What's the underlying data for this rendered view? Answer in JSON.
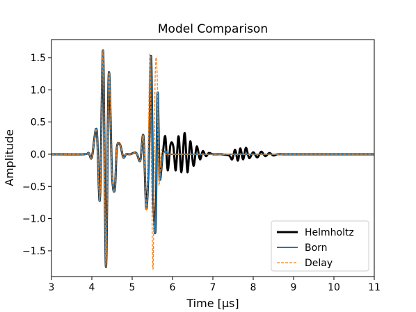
{
  "chart_data": {
    "type": "line",
    "title": "Model Comparison",
    "xlabel": "Time [µs]",
    "ylabel": "Amplitude",
    "xlim": [
      3,
      11
    ],
    "ylim": [
      -1.9,
      1.78
    ],
    "xticks": [
      3,
      4,
      5,
      6,
      7,
      8,
      9,
      10,
      11
    ],
    "xtick_labels": [
      "3",
      "4",
      "5",
      "6",
      "7",
      "8",
      "9",
      "10",
      "11"
    ],
    "yticks": [
      -1.5,
      -1.0,
      -0.5,
      0.0,
      0.5,
      1.0,
      1.5
    ],
    "ytick_labels": [
      "−1.5",
      "−1.0",
      "−0.5",
      "0.0",
      "0.5",
      "1.0",
      "1.5"
    ],
    "grid": false,
    "legend_position": "lower-right",
    "series": [
      {
        "name": "Helmholtz",
        "color": "#000000",
        "style": "solid-thick",
        "x": [
          3.0,
          3.8,
          3.92,
          4.0,
          4.12,
          4.2,
          4.28,
          4.35,
          4.42,
          4.5,
          4.57,
          4.62,
          4.7,
          4.78,
          4.85,
          4.95,
          5.1,
          5.2,
          5.28,
          5.35,
          5.42,
          5.47,
          5.52,
          5.58,
          5.63,
          5.68,
          5.75,
          5.82,
          5.88,
          5.95,
          6.02,
          6.08,
          6.15,
          6.22,
          6.3,
          6.37,
          6.44,
          6.52,
          6.6,
          6.68,
          6.75,
          6.83,
          6.9,
          7.0,
          7.2,
          7.4,
          7.48,
          7.55,
          7.62,
          7.68,
          7.75,
          7.82,
          7.9,
          8.0,
          8.1,
          8.2,
          8.3,
          8.4,
          8.5,
          8.6,
          8.75,
          9.0,
          9.5,
          10.0,
          11.0
        ],
        "y": [
          0.0,
          0.0,
          0.02,
          -0.05,
          0.38,
          -0.7,
          1.6,
          -1.75,
          1.25,
          -0.3,
          -0.55,
          0.1,
          0.15,
          -0.05,
          0.0,
          0.0,
          0.02,
          -0.1,
          0.28,
          -0.85,
          0.08,
          1.52,
          -0.55,
          -1.15,
          0.95,
          -0.35,
          -0.05,
          0.28,
          -0.25,
          0.15,
          0.12,
          -0.25,
          0.28,
          -0.28,
          0.33,
          -0.28,
          0.2,
          -0.18,
          0.12,
          -0.08,
          0.05,
          -0.03,
          0.02,
          0.0,
          0.0,
          -0.02,
          -0.08,
          0.07,
          -0.1,
          0.09,
          -0.08,
          0.1,
          -0.06,
          0.03,
          -0.05,
          0.04,
          -0.03,
          0.02,
          -0.02,
          0.0,
          0.0,
          0.0,
          0.0,
          0.0,
          0.0
        ]
      },
      {
        "name": "Born",
        "color": "#1f77b4",
        "style": "solid",
        "x": [
          3.0,
          3.8,
          3.92,
          4.0,
          4.12,
          4.2,
          4.28,
          4.35,
          4.42,
          4.5,
          4.57,
          4.62,
          4.7,
          4.78,
          4.85,
          4.95,
          5.1,
          5.2,
          5.28,
          5.35,
          5.42,
          5.47,
          5.52,
          5.58,
          5.63,
          5.68,
          5.75,
          5.82,
          5.9,
          6.0,
          7.0,
          8.0,
          9.0,
          10.0,
          11.0
        ],
        "y": [
          0.0,
          0.0,
          0.02,
          -0.05,
          0.38,
          -0.7,
          1.6,
          -1.75,
          1.25,
          -0.3,
          -0.55,
          0.1,
          0.15,
          -0.05,
          0.0,
          0.0,
          0.02,
          -0.1,
          0.28,
          -0.85,
          0.08,
          1.52,
          -0.55,
          -1.15,
          0.95,
          -0.35,
          -0.05,
          0.05,
          0.0,
          0.0,
          0.0,
          0.0,
          0.0,
          0.0,
          0.0
        ]
      },
      {
        "name": "Delay",
        "color": "#ff7f0e",
        "style": "dashed",
        "x": [
          3.0,
          3.8,
          3.92,
          4.0,
          4.12,
          4.2,
          4.28,
          4.35,
          4.42,
          4.5,
          4.57,
          4.62,
          4.7,
          4.78,
          4.85,
          4.95,
          5.1,
          5.2,
          5.28,
          5.35,
          5.4,
          5.44,
          5.48,
          5.52,
          5.57,
          5.62,
          5.66,
          5.72,
          5.78,
          5.85,
          5.95,
          7.0,
          8.0,
          9.0,
          10.0,
          11.0
        ],
        "y": [
          0.0,
          0.0,
          0.02,
          -0.05,
          0.38,
          -0.7,
          1.6,
          -1.75,
          1.25,
          -0.3,
          -0.55,
          0.1,
          0.15,
          -0.05,
          0.0,
          0.0,
          0.02,
          -0.1,
          0.28,
          -0.88,
          0.2,
          1.55,
          -0.3,
          -1.75,
          1.2,
          1.22,
          -0.45,
          0.05,
          0.0,
          0.0,
          0.0,
          0.0,
          0.0,
          0.0,
          0.0,
          0.0
        ]
      }
    ]
  }
}
